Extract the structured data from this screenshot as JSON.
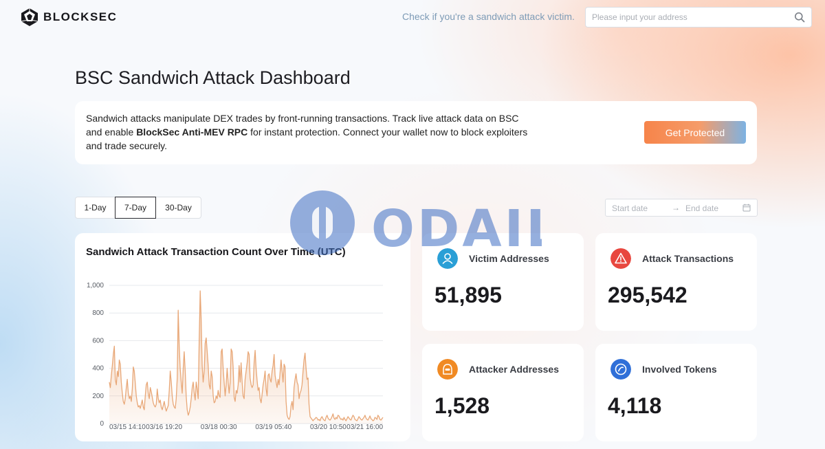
{
  "header": {
    "brand": "BLOCKSEC",
    "check_text": "Check if you're a sandwich attack victim.",
    "search_placeholder": "Please input your address"
  },
  "page_title": "BSC Sandwich Attack Dashboard",
  "intro": {
    "text_before": "Sandwich attacks manipulate DEX trades by front-running transactions. Track live attack data on BSC and enable ",
    "highlight": "BlockSec Anti-MEV RPC",
    "text_after": " for instant protection. Connect your wallet now to block exploiters and trade securely.",
    "cta_label": "Get Protected"
  },
  "tabs": [
    {
      "label": "1-Day",
      "active": false
    },
    {
      "label": "7-Day",
      "active": true
    },
    {
      "label": "30-Day",
      "active": false
    }
  ],
  "date_range": {
    "start_placeholder": "Start date",
    "end_placeholder": "End date",
    "arrow": "→"
  },
  "stats": {
    "victims": {
      "label": "Victim Addresses",
      "value": "51,895",
      "icon": "user-icon",
      "color": "#2a9fd6"
    },
    "attack_tx": {
      "label": "Attack Transactions",
      "value": "295,542",
      "icon": "warning-icon",
      "color": "#e8473f"
    },
    "attackers": {
      "label": "Attacker Addresses",
      "value": "1,528",
      "icon": "hacker-icon",
      "color": "#f08a24"
    },
    "tokens": {
      "label": "Involved Tokens",
      "value": "4,118",
      "icon": "token-icon",
      "color": "#2f6fd8"
    }
  },
  "watermark": "ODAILY",
  "chart_data": {
    "type": "area",
    "title": "Sandwich Attack Transaction Count Over Time (UTC)",
    "ylim": [
      0,
      1000
    ],
    "yticks": [
      0,
      200,
      400,
      600,
      800,
      1000
    ],
    "ytick_labels": [
      "0",
      "200",
      "400",
      "600",
      "800",
      "1,000"
    ],
    "xtick_labels": [
      "03/15 14:10",
      "03/16 19:20",
      "03/18 00:30",
      "03/19 05:40",
      "03/20 10:50",
      "03/21 16:00"
    ],
    "color": "#e8a777",
    "values": [
      300,
      260,
      350,
      420,
      500,
      560,
      320,
      280,
      380,
      340,
      460,
      430,
      300,
      220,
      160,
      140,
      180,
      260,
      320,
      220,
      180,
      200,
      160,
      250,
      410,
      380,
      290,
      200,
      150,
      120,
      130,
      110,
      140,
      170,
      120,
      100,
      200,
      280,
      300,
      220,
      180,
      260,
      230,
      190,
      150,
      130,
      120,
      140,
      250,
      180,
      150,
      170,
      120,
      100,
      130,
      160,
      120,
      90,
      110,
      130,
      240,
      380,
      300,
      200,
      140,
      120,
      110,
      180,
      330,
      820,
      560,
      400,
      300,
      220,
      400,
      520,
      380,
      200,
      100,
      60,
      80,
      120,
      180,
      260,
      300,
      220,
      170,
      300,
      250,
      180,
      600,
      960,
      760,
      420,
      300,
      380,
      580,
      620,
      520,
      420,
      280,
      250,
      380,
      340,
      200,
      150,
      160,
      200,
      180,
      240,
      200,
      190,
      520,
      540,
      400,
      300,
      200,
      280,
      400,
      300,
      220,
      300,
      540,
      520,
      410,
      190,
      160,
      240,
      220,
      280,
      420,
      300,
      440,
      300,
      200,
      180,
      320,
      380,
      440,
      520,
      500,
      330,
      280,
      260,
      280,
      440,
      530,
      400,
      310,
      240,
      260,
      180,
      150,
      210,
      280,
      320,
      380,
      250,
      200,
      350,
      360,
      320,
      300,
      380,
      420,
      500,
      350,
      300,
      260,
      320,
      280,
      370,
      460,
      380,
      300,
      430,
      410,
      160,
      60,
      40,
      30,
      50,
      130,
      160,
      100,
      260,
      320,
      360,
      300,
      280,
      180,
      220,
      240,
      280,
      380,
      460,
      510,
      400,
      320,
      330,
      140,
      50,
      40,
      30,
      20,
      30,
      35,
      45,
      40,
      25,
      30,
      20,
      40,
      50,
      35,
      25,
      20,
      45,
      60,
      40,
      30,
      25,
      35,
      50,
      70,
      40,
      30,
      45,
      35,
      60,
      55,
      40,
      30,
      35,
      25,
      45,
      30,
      20,
      35,
      50,
      40,
      30,
      25,
      45,
      60,
      50,
      30,
      25,
      20,
      35,
      50,
      40,
      30,
      25,
      35,
      45,
      60,
      40,
      30,
      25,
      40,
      55,
      35,
      30,
      20,
      25,
      45,
      40,
      30,
      60,
      50,
      30,
      25,
      35,
      45
    ]
  }
}
